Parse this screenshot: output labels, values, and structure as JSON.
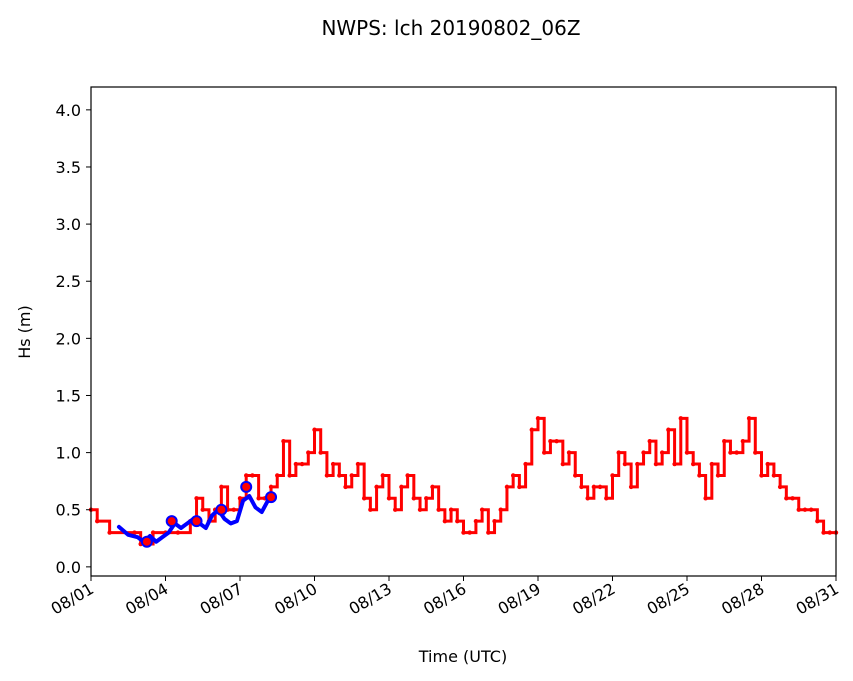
{
  "chart_data": {
    "type": "line",
    "title": "NWPS: lch 20190802_06Z",
    "xlabel": "Time (UTC)",
    "ylabel": "Hs (m)",
    "xlim": [
      "2019-08-01T00:00",
      "2019-08-31T00:00"
    ],
    "ylim": [
      -0.08,
      4.2
    ],
    "x_tick_labels": [
      "08/01",
      "08/04",
      "08/07",
      "08/10",
      "08/13",
      "08/16",
      "08/19",
      "08/22",
      "08/25",
      "08/28",
      "08/31"
    ],
    "x_tick_dates": [
      "2019-08-01T00:00",
      "2019-08-04T00:00",
      "2019-08-07T00:00",
      "2019-08-10T00:00",
      "2019-08-13T00:00",
      "2019-08-16T00:00",
      "2019-08-19T00:00",
      "2019-08-22T00:00",
      "2019-08-25T00:00",
      "2019-08-28T00:00",
      "2019-08-31T00:00"
    ],
    "y_ticks": [
      0.0,
      0.5,
      1.0,
      1.5,
      2.0,
      2.5,
      3.0,
      3.5,
      4.0
    ],
    "y_tick_labels": [
      "0.0",
      "0.5",
      "1.0",
      "1.5",
      "2.0",
      "2.5",
      "3.0",
      "3.5",
      "4.0"
    ],
    "grid": false,
    "series": [
      {
        "color": "#ff0000",
        "style": "step-line-with-dots",
        "points": [
          [
            "2019-08-01T00:00",
            0.5
          ],
          [
            "2019-08-01T06:00",
            0.4
          ],
          [
            "2019-08-01T18:00",
            0.3
          ],
          [
            "2019-08-02T18:00",
            0.3
          ],
          [
            "2019-08-03T00:00",
            0.2
          ],
          [
            "2019-08-03T12:00",
            0.3
          ],
          [
            "2019-08-04T00:00",
            0.3
          ],
          [
            "2019-08-04T12:00",
            0.3
          ],
          [
            "2019-08-05T00:00",
            0.4
          ],
          [
            "2019-08-05T06:00",
            0.6
          ],
          [
            "2019-08-05T12:00",
            0.5
          ],
          [
            "2019-08-05T18:00",
            0.4
          ],
          [
            "2019-08-06T00:00",
            0.5
          ],
          [
            "2019-08-06T06:00",
            0.7
          ],
          [
            "2019-08-06T12:00",
            0.5
          ],
          [
            "2019-08-06T18:00",
            0.5
          ],
          [
            "2019-08-07T00:00",
            0.6
          ],
          [
            "2019-08-07T06:00",
            0.8
          ],
          [
            "2019-08-07T12:00",
            0.8
          ],
          [
            "2019-08-07T18:00",
            0.6
          ],
          [
            "2019-08-08T00:00",
            0.6
          ],
          [
            "2019-08-08T06:00",
            0.7
          ],
          [
            "2019-08-08T12:00",
            0.8
          ],
          [
            "2019-08-08T18:00",
            1.1
          ],
          [
            "2019-08-09T00:00",
            0.8
          ],
          [
            "2019-08-09T06:00",
            0.9
          ],
          [
            "2019-08-09T12:00",
            0.9
          ],
          [
            "2019-08-09T18:00",
            1.0
          ],
          [
            "2019-08-10T00:00",
            1.2
          ],
          [
            "2019-08-10T06:00",
            1.0
          ],
          [
            "2019-08-10T12:00",
            0.8
          ],
          [
            "2019-08-10T18:00",
            0.9
          ],
          [
            "2019-08-11T00:00",
            0.8
          ],
          [
            "2019-08-11T06:00",
            0.7
          ],
          [
            "2019-08-11T12:00",
            0.8
          ],
          [
            "2019-08-11T18:00",
            0.9
          ],
          [
            "2019-08-12T00:00",
            0.6
          ],
          [
            "2019-08-12T06:00",
            0.5
          ],
          [
            "2019-08-12T12:00",
            0.7
          ],
          [
            "2019-08-12T18:00",
            0.8
          ],
          [
            "2019-08-13T00:00",
            0.6
          ],
          [
            "2019-08-13T06:00",
            0.5
          ],
          [
            "2019-08-13T12:00",
            0.7
          ],
          [
            "2019-08-13T18:00",
            0.8
          ],
          [
            "2019-08-14T00:00",
            0.6
          ],
          [
            "2019-08-14T06:00",
            0.5
          ],
          [
            "2019-08-14T12:00",
            0.6
          ],
          [
            "2019-08-14T18:00",
            0.7
          ],
          [
            "2019-08-15T00:00",
            0.5
          ],
          [
            "2019-08-15T06:00",
            0.4
          ],
          [
            "2019-08-15T12:00",
            0.5
          ],
          [
            "2019-08-15T18:00",
            0.4
          ],
          [
            "2019-08-16T00:00",
            0.3
          ],
          [
            "2019-08-16T06:00",
            0.3
          ],
          [
            "2019-08-16T12:00",
            0.4
          ],
          [
            "2019-08-16T18:00",
            0.5
          ],
          [
            "2019-08-17T00:00",
            0.3
          ],
          [
            "2019-08-17T06:00",
            0.4
          ],
          [
            "2019-08-17T12:00",
            0.5
          ],
          [
            "2019-08-17T18:00",
            0.7
          ],
          [
            "2019-08-18T00:00",
            0.8
          ],
          [
            "2019-08-18T06:00",
            0.7
          ],
          [
            "2019-08-18T12:00",
            0.9
          ],
          [
            "2019-08-18T18:00",
            1.2
          ],
          [
            "2019-08-19T00:00",
            1.3
          ],
          [
            "2019-08-19T06:00",
            1.0
          ],
          [
            "2019-08-19T12:00",
            1.1
          ],
          [
            "2019-08-19T18:00",
            1.1
          ],
          [
            "2019-08-20T00:00",
            0.9
          ],
          [
            "2019-08-20T06:00",
            1.0
          ],
          [
            "2019-08-20T12:00",
            0.8
          ],
          [
            "2019-08-20T18:00",
            0.7
          ],
          [
            "2019-08-21T00:00",
            0.6
          ],
          [
            "2019-08-21T06:00",
            0.7
          ],
          [
            "2019-08-21T12:00",
            0.7
          ],
          [
            "2019-08-21T18:00",
            0.6
          ],
          [
            "2019-08-22T00:00",
            0.8
          ],
          [
            "2019-08-22T06:00",
            1.0
          ],
          [
            "2019-08-22T12:00",
            0.9
          ],
          [
            "2019-08-22T18:00",
            0.7
          ],
          [
            "2019-08-23T00:00",
            0.9
          ],
          [
            "2019-08-23T06:00",
            1.0
          ],
          [
            "2019-08-23T12:00",
            1.1
          ],
          [
            "2019-08-23T18:00",
            0.9
          ],
          [
            "2019-08-24T00:00",
            1.0
          ],
          [
            "2019-08-24T06:00",
            1.2
          ],
          [
            "2019-08-24T12:00",
            0.9
          ],
          [
            "2019-08-24T18:00",
            1.3
          ],
          [
            "2019-08-25T00:00",
            1.0
          ],
          [
            "2019-08-25T06:00",
            0.9
          ],
          [
            "2019-08-25T12:00",
            0.8
          ],
          [
            "2019-08-25T18:00",
            0.6
          ],
          [
            "2019-08-26T00:00",
            0.9
          ],
          [
            "2019-08-26T06:00",
            0.8
          ],
          [
            "2019-08-26T12:00",
            1.1
          ],
          [
            "2019-08-26T18:00",
            1.0
          ],
          [
            "2019-08-27T00:00",
            1.0
          ],
          [
            "2019-08-27T06:00",
            1.1
          ],
          [
            "2019-08-27T12:00",
            1.3
          ],
          [
            "2019-08-27T18:00",
            1.0
          ],
          [
            "2019-08-28T00:00",
            0.8
          ],
          [
            "2019-08-28T06:00",
            0.9
          ],
          [
            "2019-08-28T12:00",
            0.8
          ],
          [
            "2019-08-28T18:00",
            0.7
          ],
          [
            "2019-08-29T00:00",
            0.6
          ],
          [
            "2019-08-29T06:00",
            0.6
          ],
          [
            "2019-08-29T12:00",
            0.5
          ],
          [
            "2019-08-29T18:00",
            0.5
          ],
          [
            "2019-08-30T00:00",
            0.5
          ],
          [
            "2019-08-30T06:00",
            0.4
          ],
          [
            "2019-08-30T12:00",
            0.3
          ],
          [
            "2019-08-30T18:00",
            0.3
          ],
          [
            "2019-08-31T00:00",
            0.3
          ]
        ]
      },
      {
        "color": "#0000ff",
        "style": "thick-line",
        "points": [
          [
            "2019-08-02T03:00",
            0.35
          ],
          [
            "2019-08-02T12:00",
            0.28
          ],
          [
            "2019-08-02T21:00",
            0.26
          ],
          [
            "2019-08-03T03:00",
            0.22
          ],
          [
            "2019-08-03T09:00",
            0.27
          ],
          [
            "2019-08-03T15:00",
            0.22
          ],
          [
            "2019-08-03T21:00",
            0.26
          ],
          [
            "2019-08-04T03:00",
            0.3
          ],
          [
            "2019-08-04T09:00",
            0.38
          ],
          [
            "2019-08-04T15:00",
            0.34
          ],
          [
            "2019-08-04T21:00",
            0.38
          ],
          [
            "2019-08-05T03:00",
            0.42
          ],
          [
            "2019-08-05T09:00",
            0.38
          ],
          [
            "2019-08-05T15:00",
            0.34
          ],
          [
            "2019-08-05T21:00",
            0.45
          ],
          [
            "2019-08-06T03:00",
            0.5
          ],
          [
            "2019-08-06T09:00",
            0.42
          ],
          [
            "2019-08-06T15:00",
            0.38
          ],
          [
            "2019-08-06T21:00",
            0.4
          ],
          [
            "2019-08-07T03:00",
            0.58
          ],
          [
            "2019-08-07T09:00",
            0.62
          ],
          [
            "2019-08-07T15:00",
            0.52
          ],
          [
            "2019-08-07T21:00",
            0.48
          ],
          [
            "2019-08-08T03:00",
            0.58
          ],
          [
            "2019-08-08T09:00",
            0.62
          ]
        ]
      },
      {
        "color": "#ff0000",
        "edge_color": "#0000ff",
        "style": "markers",
        "points": [
          [
            "2019-08-03T06:00",
            0.22
          ],
          [
            "2019-08-04T06:00",
            0.4
          ],
          [
            "2019-08-05T06:00",
            0.4
          ],
          [
            "2019-08-06T06:00",
            0.5
          ],
          [
            "2019-08-07T06:00",
            0.7
          ],
          [
            "2019-08-08T06:00",
            0.61
          ]
        ]
      }
    ]
  }
}
